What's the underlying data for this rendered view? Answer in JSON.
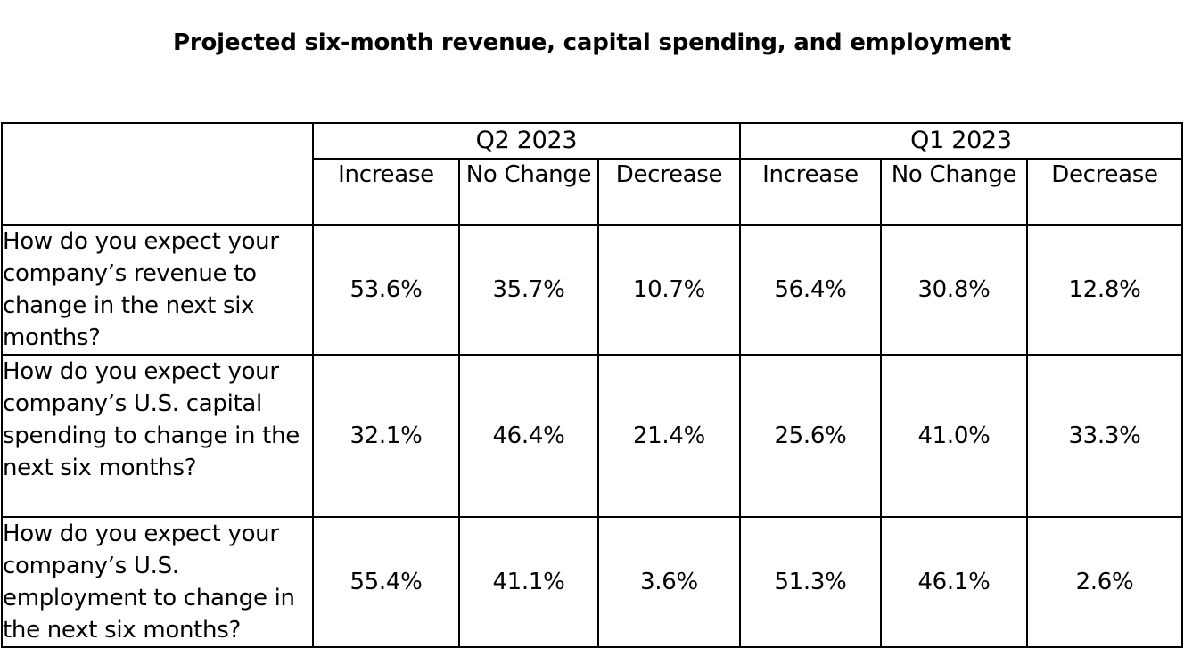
{
  "chart_data": {
    "type": "table",
    "title": "Projected six-month revenue, capital spending, and employment",
    "periods": [
      "Q2 2023",
      "Q1 2023"
    ],
    "columns": [
      "Increase",
      "No Change",
      "Decrease"
    ],
    "rows": [
      {
        "question": "How do you expect your company’s revenue to change in the next six months?",
        "values": [
          "53.6%",
          "35.7%",
          "10.7%",
          "56.4%",
          "30.8%",
          "12.8%"
        ]
      },
      {
        "question": "How do you expect your company’s U.S. capital spending to change in the next six months?",
        "values": [
          "32.1%",
          "46.4%",
          "21.4%",
          "25.6%",
          "41.0%",
          "33.3%"
        ]
      },
      {
        "question": "How do you expect your company’s U.S. employment to change in the next six months?",
        "values": [
          "55.4%",
          "41.1%",
          "3.6%",
          "51.3%",
          "46.1%",
          "2.6%"
        ]
      }
    ]
  }
}
